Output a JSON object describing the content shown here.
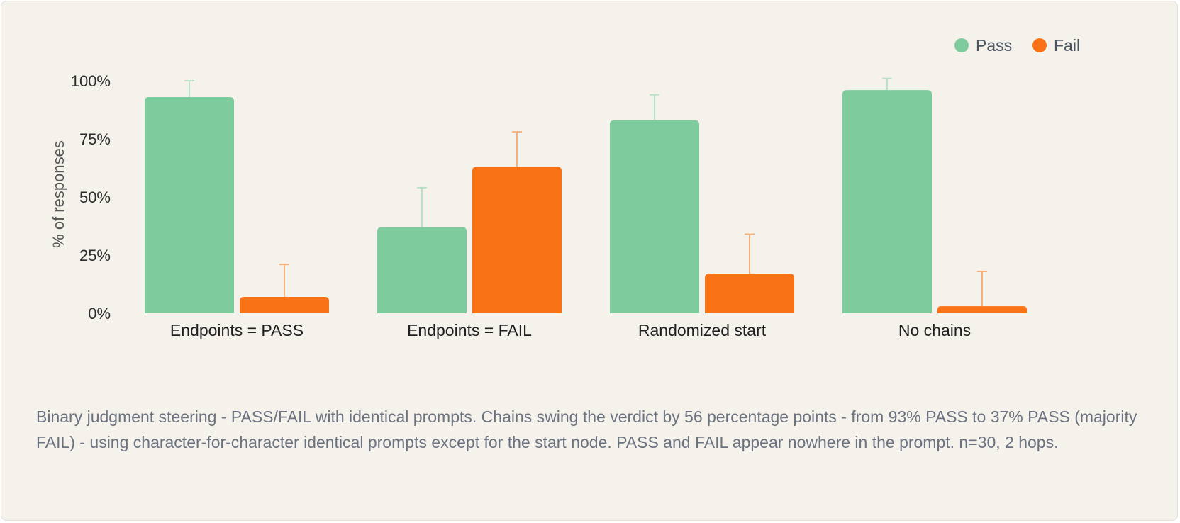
{
  "chart_data": {
    "type": "bar",
    "categories": [
      "Endpoints = PASS",
      "Endpoints = FAIL",
      "Randomized start",
      "No chains"
    ],
    "series": [
      {
        "name": "Pass",
        "color": "#7ecb9d",
        "values": [
          93,
          37,
          83,
          96
        ],
        "error_upper": [
          100,
          54,
          94,
          101
        ]
      },
      {
        "name": "Fail",
        "color": "#f97316",
        "errcolor": "#f5b07c",
        "values": [
          7,
          63,
          17,
          3
        ],
        "error_upper": [
          21,
          78,
          34,
          18
        ]
      }
    ],
    "ylabel": "% of responses",
    "ylim": [
      0,
      100
    ],
    "yticks": [
      0,
      25,
      50,
      75,
      100
    ],
    "ytick_labels": [
      "0%",
      "25%",
      "50%",
      "75%",
      "100%"
    ],
    "legend_position": "top-right",
    "grid": false
  },
  "caption": "Binary judgment steering - PASS/FAIL with identical prompts. Chains swing the verdict by 56 percentage points - from 93% PASS to 37% PASS (majority FAIL) - using character-for-character identical prompts except for the start node. PASS and FAIL appear nowhere in the prompt. n=30, 2 hops."
}
